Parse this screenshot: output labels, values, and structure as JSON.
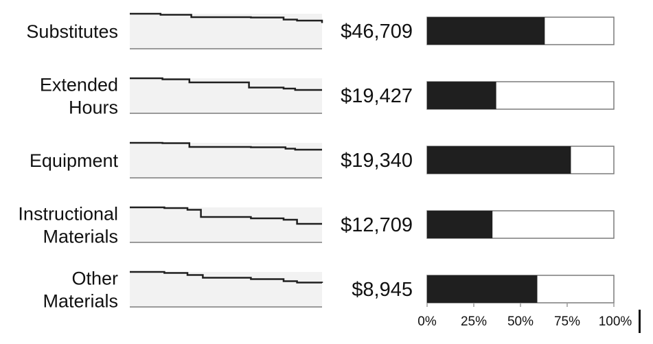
{
  "chart_data": {
    "type": "bar",
    "title": "",
    "subtitle": "",
    "xlabel": "",
    "ylabel": "",
    "legend": "none",
    "grid": false,
    "sparkline_type": "step-line",
    "colors": {
      "bar_fill": "#1f1f1f",
      "bar_border": "#7a7a7a",
      "bar_background": "#ffffff",
      "spark_background": "#f2f2f2",
      "spark_line": "#1f1f1f",
      "axis": "#9a9a9a",
      "text": "#111111"
    },
    "categories": [
      [
        "Substitutes"
      ],
      [
        "Extended",
        "Hours"
      ],
      [
        "Equipment"
      ],
      [
        "Instructional",
        "Materials"
      ],
      [
        "Other",
        "Materials"
      ]
    ],
    "amounts": [
      "$46,709",
      "$19,427",
      "$19,340",
      "$12,709",
      "$8,945"
    ],
    "percent_values": [
      63,
      37,
      77,
      35,
      59
    ],
    "xlim": [
      0,
      100
    ],
    "ticks": [
      {
        "value": 0,
        "label": "0%"
      },
      {
        "value": 25,
        "label": "25%"
      },
      {
        "value": 50,
        "label": "50%"
      },
      {
        "value": 75,
        "label": "75%"
      },
      {
        "value": 100,
        "label": "100%"
      }
    ],
    "sparklines": [
      {
        "x": [
          0,
          16,
          32,
          63,
          80,
          87,
          100
        ],
        "y": [
          100,
          97,
          90,
          89,
          83,
          80,
          73
        ]
      },
      {
        "x": [
          0,
          17,
          31,
          62,
          80,
          86,
          100
        ],
        "y": [
          100,
          97,
          88,
          73,
          70,
          66,
          66
        ]
      },
      {
        "x": [
          0,
          17,
          31,
          63,
          81,
          86,
          100
        ],
        "y": [
          100,
          99,
          88,
          87,
          83,
          80,
          80
        ]
      },
      {
        "x": [
          0,
          18,
          30,
          37,
          63,
          80,
          87,
          100
        ],
        "y": [
          100,
          98,
          93,
          72,
          68,
          64,
          52,
          52
        ]
      },
      {
        "x": [
          0,
          18,
          30,
          38,
          63,
          80,
          87,
          100
        ],
        "y": [
          100,
          97,
          91,
          83,
          79,
          73,
          69,
          68
        ]
      }
    ]
  }
}
